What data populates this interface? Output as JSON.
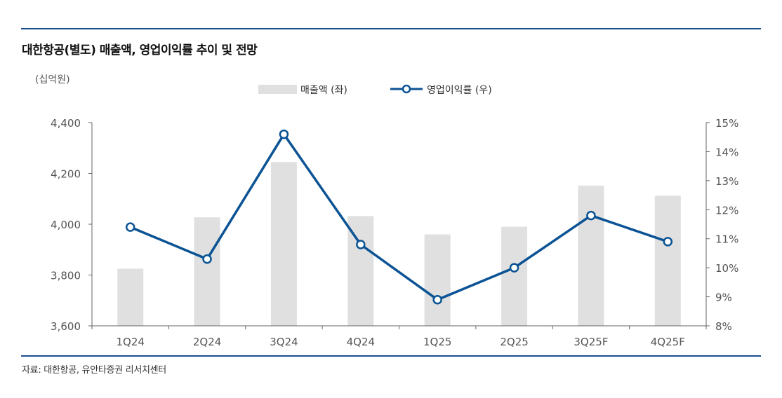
{
  "title": "대한항공(별도) 매출액, 영업이익률 추이 및 전망",
  "source": "자료: 대한항공, 유안타증권 리서치센터",
  "chart_data": {
    "type": "bar",
    "categories": [
      "1Q24",
      "2Q24",
      "3Q24",
      "4Q24",
      "1Q25",
      "2Q25",
      "3Q25F",
      "4Q25F"
    ],
    "series": [
      {
        "name": "매출액 (좌)",
        "type": "bar",
        "axis": "left",
        "values": [
          3825,
          4027,
          4245,
          4032,
          3960,
          3990,
          4152,
          4112
        ],
        "color": "#e0e0e0"
      },
      {
        "name": "영업이익률 (우)",
        "type": "line",
        "axis": "right",
        "values": [
          11.4,
          10.3,
          14.6,
          10.8,
          8.9,
          10.0,
          11.8,
          10.9
        ],
        "color": "#0b5394"
      }
    ],
    "y_left": {
      "unit": "(십억원)",
      "min": 3600,
      "max": 4400,
      "ticks": [
        "3,600",
        "3,800",
        "4,000",
        "4,200",
        "4,400"
      ],
      "tick_values": [
        3600,
        3800,
        4000,
        4200,
        4400
      ]
    },
    "y_right": {
      "min": 8,
      "max": 15,
      "ticks": [
        "8%",
        "9%",
        "10%",
        "11%",
        "12%",
        "13%",
        "14%",
        "15%"
      ],
      "tick_values": [
        8,
        9,
        10,
        11,
        12,
        13,
        14,
        15
      ]
    },
    "legend_position": "top-center",
    "grid": false
  }
}
